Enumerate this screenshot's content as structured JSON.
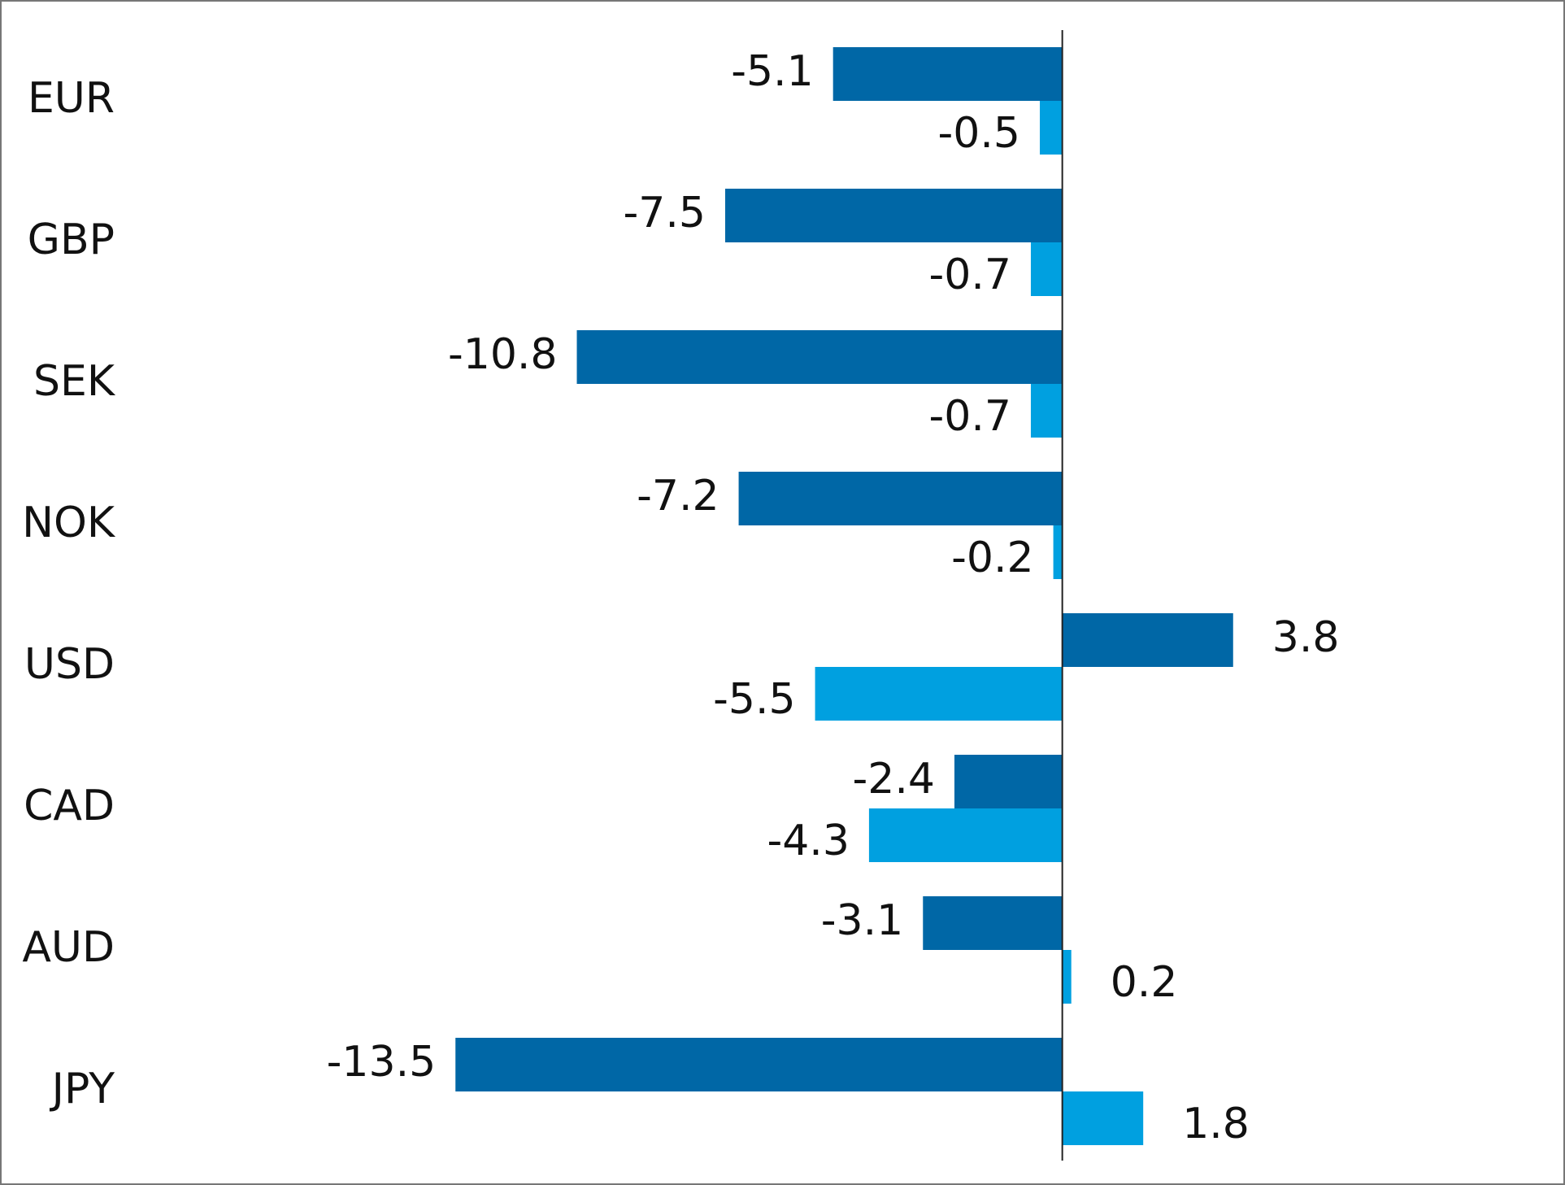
{
  "chart_data": {
    "type": "hbar",
    "categories": [
      "EUR",
      "GBP",
      "SEK",
      "NOK",
      "USD",
      "CAD",
      "AUD",
      "JPY"
    ],
    "series": [
      {
        "color": "#0067a6",
        "values": [
          -5.1,
          -7.5,
          -10.8,
          -7.2,
          3.8,
          -2.4,
          -3.1,
          -13.5
        ]
      },
      {
        "color": "#00a0e0",
        "values": [
          -0.5,
          -0.7,
          -0.7,
          -0.2,
          -5.5,
          -4.3,
          0.2,
          1.8
        ]
      }
    ],
    "xlim": [
      -16,
      8
    ]
  }
}
